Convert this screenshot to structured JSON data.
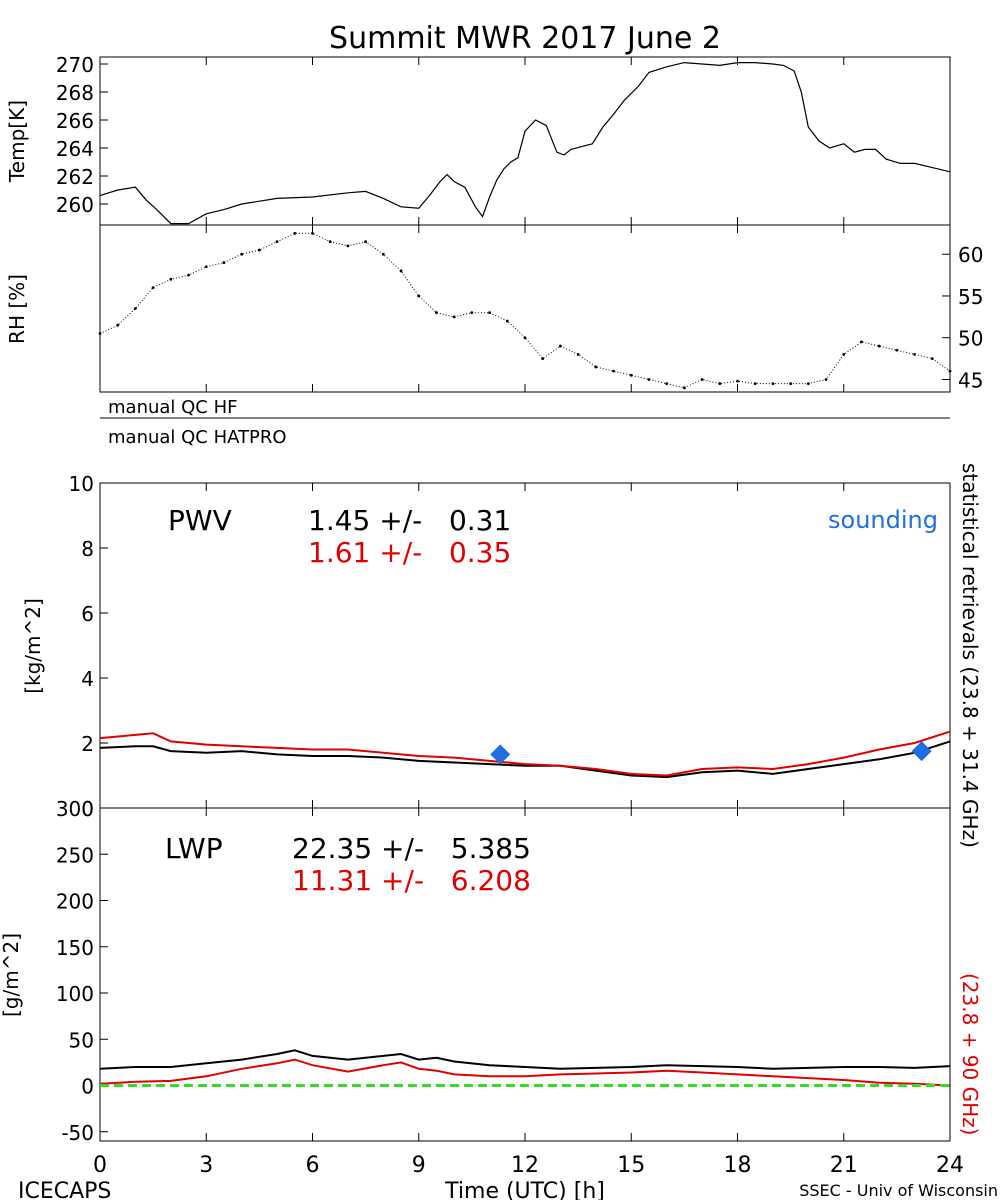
{
  "title": "Summit MWR 2017 June  2",
  "footer": {
    "left": "ICECAPS",
    "center": "Time (UTC) [h]",
    "right": "SSEC - Univ of Wisconsin"
  },
  "colors": {
    "hf_series": "#000000",
    "hatpro_series": "#e00000",
    "sounding": "#1f6fe0",
    "zero_line": "#33dd22"
  },
  "chart_data": [
    {
      "type": "line",
      "id": "temp",
      "ylabel": "Temp[K]",
      "xlim": [
        0,
        24
      ],
      "ylim": [
        258.5,
        270.5
      ],
      "yticks": [
        "260",
        "262",
        "264",
        "266",
        "268",
        "270"
      ],
      "grid": false,
      "series": [
        {
          "x": [
            0,
            0.5,
            1,
            1.3,
            1.6,
            2,
            2.5,
            3,
            3.5,
            4,
            5,
            6,
            7,
            7.5,
            8,
            8.5,
            9,
            9.3,
            9.6,
            9.8,
            10,
            10.3,
            10.6,
            10.8,
            11,
            11.2,
            11.4,
            11.6,
            11.8,
            12,
            12.3,
            12.6,
            12.9,
            13.1,
            13.3,
            13.6,
            13.9,
            14.2,
            14.5,
            14.8,
            15.2,
            15.5,
            16,
            16.5,
            17,
            17.5,
            18,
            18.5,
            19,
            19.3,
            19.6,
            19.8,
            20,
            20.3,
            20.6,
            21,
            21.3,
            21.6,
            21.9,
            22.2,
            22.6,
            23,
            23.5,
            24
          ],
          "values": [
            260.6,
            261.0,
            261.2,
            260.3,
            259.6,
            258.6,
            258.6,
            259.3,
            259.6,
            260.0,
            260.4,
            260.5,
            260.8,
            260.9,
            260.4,
            259.8,
            259.7,
            260.6,
            261.6,
            262.1,
            261.6,
            261.2,
            259.8,
            259.1,
            260.5,
            261.7,
            262.5,
            263.0,
            263.3,
            265.2,
            266.0,
            265.6,
            263.7,
            263.5,
            263.9,
            264.1,
            264.3,
            265.5,
            266.4,
            267.4,
            268.4,
            269.4,
            269.8,
            270.1,
            270.0,
            269.9,
            270.1,
            270.1,
            270.0,
            269.9,
            269.5,
            268.0,
            265.5,
            264.5,
            264.0,
            264.3,
            263.7,
            263.9,
            263.9,
            263.2,
            262.9,
            262.9,
            262.6,
            262.3
          ]
        }
      ]
    },
    {
      "type": "scatter",
      "id": "rh",
      "ylabel": "RH [%]",
      "xlim": [
        0,
        24
      ],
      "ylim": [
        43.5,
        63.5
      ],
      "yticks": [
        "45",
        "50",
        "55",
        "60"
      ],
      "grid": false,
      "series": [
        {
          "x": [
            0,
            0.5,
            1,
            1.5,
            2,
            2.5,
            3,
            3.5,
            4,
            4.5,
            5,
            5.5,
            6,
            6.5,
            7,
            7.5,
            8,
            8.5,
            9,
            9.5,
            10,
            10.5,
            11,
            11.5,
            12,
            12.5,
            13,
            13.5,
            14,
            14.5,
            15,
            15.5,
            16,
            16.5,
            17,
            17.5,
            18,
            18.5,
            19,
            19.5,
            20,
            20.5,
            21,
            21.5,
            22,
            22.5,
            23,
            23.5,
            24
          ],
          "values": [
            50.5,
            51.5,
            53.5,
            56.0,
            57.0,
            57.5,
            58.5,
            59.0,
            60.0,
            60.5,
            61.5,
            62.5,
            62.5,
            61.5,
            61.0,
            61.5,
            60.0,
            58.0,
            55.0,
            53.0,
            52.5,
            53.0,
            53.0,
            52.0,
            50.0,
            47.5,
            49.0,
            48.0,
            46.5,
            46.0,
            45.5,
            45.0,
            44.5,
            44.0,
            45.0,
            44.5,
            44.8,
            44.5,
            44.5,
            44.5,
            44.5,
            45.0,
            48.0,
            49.5,
            49.0,
            48.5,
            48.0,
            47.5,
            46.0
          ]
        }
      ]
    },
    {
      "type": "line",
      "id": "pwv",
      "ylabel": "[kg/m^2]",
      "xlim": [
        0,
        24
      ],
      "ylim": [
        0,
        10
      ],
      "yticks": [
        "0",
        "2",
        "4",
        "6",
        "8",
        "10"
      ],
      "grid": false,
      "label": "PWV",
      "stats": [
        {
          "text": "1.45 +/-   0.31",
          "color": "#000000"
        },
        {
          "text": "1.61 +/-   0.35",
          "color": "#e00000"
        }
      ],
      "sounding_label": "sounding",
      "sounding_points": {
        "x": [
          11.3,
          23.2
        ],
        "values": [
          1.65,
          1.75
        ]
      },
      "right_label_black": "statistical retrievals (23.8 + 31.4 GHz)",
      "right_label_red": "(23.8 + 90 GHz)",
      "series": [
        {
          "color": "#000000",
          "x": [
            0,
            1,
            1.5,
            2,
            3,
            4,
            5,
            6,
            7,
            8,
            9,
            10,
            11,
            12,
            13,
            14,
            15,
            16,
            17,
            18,
            19,
            20,
            21,
            22,
            23,
            24
          ],
          "values": [
            1.85,
            1.9,
            1.9,
            1.75,
            1.7,
            1.75,
            1.65,
            1.6,
            1.6,
            1.55,
            1.45,
            1.4,
            1.35,
            1.3,
            1.3,
            1.15,
            1.0,
            0.95,
            1.1,
            1.15,
            1.05,
            1.2,
            1.35,
            1.5,
            1.7,
            2.05
          ]
        },
        {
          "color": "#e00000",
          "x": [
            0,
            1,
            1.5,
            2,
            3,
            4,
            5,
            6,
            7,
            8,
            9,
            10,
            11,
            12,
            13,
            14,
            15,
            16,
            17,
            18,
            19,
            20,
            21,
            22,
            23,
            24
          ],
          "values": [
            2.15,
            2.25,
            2.3,
            2.05,
            1.95,
            1.9,
            1.85,
            1.8,
            1.8,
            1.7,
            1.6,
            1.55,
            1.45,
            1.35,
            1.3,
            1.2,
            1.05,
            1.0,
            1.2,
            1.25,
            1.2,
            1.35,
            1.55,
            1.8,
            2.0,
            2.35
          ]
        }
      ]
    },
    {
      "type": "line",
      "id": "lwp",
      "ylabel": "[g/m^2]",
      "xlim": [
        0,
        24
      ],
      "ylim": [
        -60,
        300
      ],
      "yticks": [
        "-50",
        "0",
        "50",
        "100",
        "150",
        "200",
        "250",
        "300"
      ],
      "xticks": [
        "0",
        "3",
        "6",
        "9",
        "12",
        "15",
        "18",
        "21",
        "24"
      ],
      "grid": false,
      "label": "LWP",
      "stats": [
        {
          "text": "22.35 +/-   5.385",
          "color": "#000000"
        },
        {
          "text": "11.31 +/-   6.208",
          "color": "#e00000"
        }
      ],
      "series": [
        {
          "color": "#000000",
          "x": [
            0,
            1,
            2,
            3,
            4,
            5,
            5.5,
            6,
            7,
            8,
            8.5,
            9,
            9.5,
            10,
            11,
            12,
            13,
            14,
            15,
            16,
            17,
            18,
            19,
            20,
            21,
            22,
            23,
            24
          ],
          "values": [
            18,
            20,
            20,
            24,
            28,
            34,
            38,
            32,
            28,
            32,
            34,
            28,
            30,
            26,
            22,
            20,
            18,
            19,
            20,
            22,
            21,
            20,
            18,
            19,
            20,
            20,
            19,
            21
          ]
        },
        {
          "color": "#e00000",
          "x": [
            0,
            1,
            2,
            3,
            4,
            5,
            5.5,
            6,
            7,
            8,
            8.5,
            9,
            9.5,
            10,
            11,
            12,
            13,
            14,
            15,
            16,
            17,
            18,
            19,
            20,
            21,
            22,
            23,
            24
          ],
          "values": [
            2,
            4,
            5,
            10,
            18,
            24,
            28,
            22,
            15,
            22,
            25,
            18,
            16,
            12,
            10,
            10,
            12,
            13,
            14,
            16,
            14,
            12,
            10,
            8,
            6,
            3,
            2,
            0
          ]
        },
        {
          "color": "#33dd22",
          "dashed": true,
          "x": [
            0,
            24
          ],
          "values": [
            0,
            0
          ]
        }
      ]
    }
  ],
  "qc": {
    "hf": "manual QC HF",
    "hatpro": "manual QC HATPRO"
  }
}
